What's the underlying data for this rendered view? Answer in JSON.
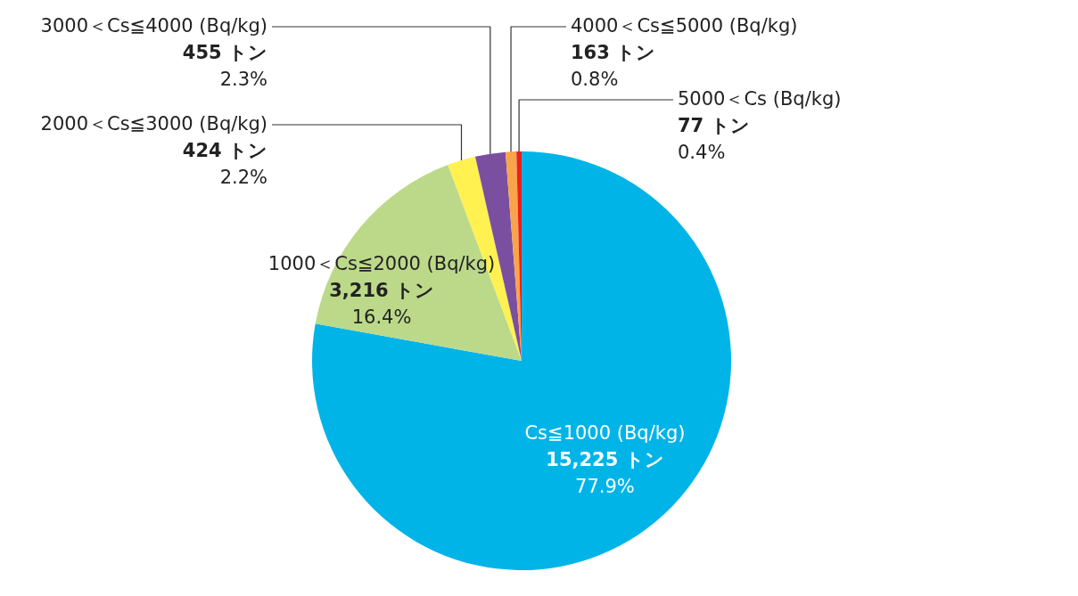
{
  "chart_data": {
    "type": "pie",
    "categories": [
      "Cs≦1000 (Bq/kg)",
      "1000＜Cs≦2000 (Bq/kg)",
      "2000＜Cs≦3000 (Bq/kg)",
      "3000＜Cs≦4000 (Bq/kg)",
      "4000＜Cs≦5000 (Bq/kg)",
      "5000＜Cs (Bq/kg)"
    ],
    "values": [
      15225,
      3216,
      424,
      455,
      163,
      77
    ],
    "colors": [
      "#00b4e8",
      "#bcd98a",
      "#fff150",
      "#7b4fa0",
      "#f9a44a",
      "#e8211d"
    ],
    "value_labels": [
      "15,225 トン",
      "3,216 トン",
      "424 トン",
      "455 トン",
      "163 トン",
      "77 トン"
    ],
    "annotations": [
      "77.9%",
      "16.4%",
      "2.2%",
      "2.3%",
      "0.8%",
      "0.4%"
    ]
  }
}
